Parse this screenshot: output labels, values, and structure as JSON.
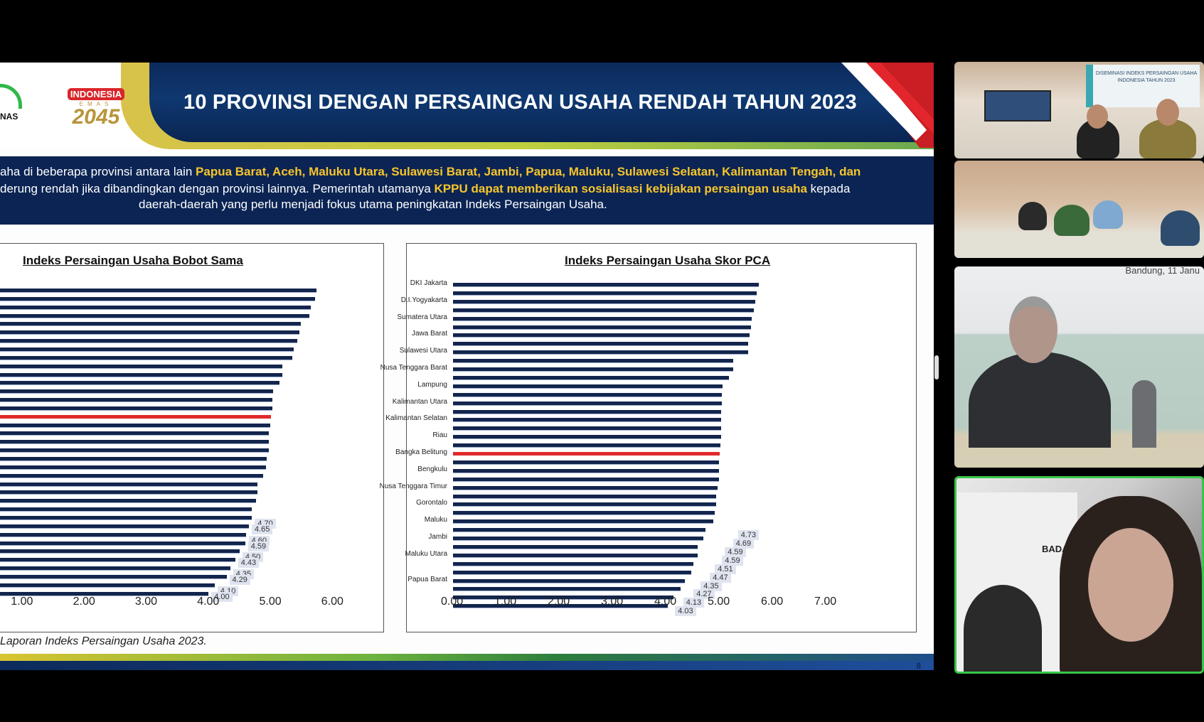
{
  "slide": {
    "title": "10 PROVINSI DENGAN PERSAINGAN USAHA RENDAH TAHUN 2023",
    "logo_left_text": "NAS",
    "logo_emas": {
      "top": "INDONESIA",
      "mid": "EMAS",
      "year": "2045"
    },
    "intro": {
      "line1_plain": "aha di beberapa provinsi antara lain ",
      "line1_highlight": "Papua Barat, Aceh, Maluku Utara, Sulawesi Barat, Jambi, Papua, Maluku, Sulawesi Selatan, Kalimantan Tengah, dan",
      "line2_plain_a": "derung rendah jika dibandingkan dengan provinsi lainnya. Pemerintah utamanya ",
      "line2_highlight": "KPPU dapat memberikan sosialisasi kebijakan persaingan usaha",
      "line2_plain_b": " kepada",
      "line3": "daerah-daerah yang perlu menjadi fokus utama peningkatan Indeks Persaingan Usaha."
    },
    "source": "Laporan Indeks Persaingan Usaha 2023.",
    "page_number": "8",
    "colors": {
      "bar": "#13254d",
      "highlight_bar": "#e02a2a",
      "banner": "#0c2a5c",
      "highlight_text": "#f7c52b"
    }
  },
  "chart_data": [
    {
      "type": "bar",
      "orientation": "horizontal",
      "title": "Indeks Persaingan Usaha Bobot Sama",
      "xlabel": "",
      "ylabel": "",
      "x_ticks": [
        "1.00",
        "2.00",
        "3.00",
        "4.00",
        "5.00",
        "6.00"
      ],
      "xlim": [
        0,
        6
      ],
      "categories_visible": false,
      "values": [
        5.74,
        5.72,
        5.65,
        5.63,
        5.49,
        5.46,
        5.43,
        5.37,
        5.35,
        5.19,
        5.19,
        5.14,
        5.04,
        5.03,
        5.03,
        5.01,
        4.99,
        4.97,
        4.97,
        4.97,
        4.94,
        4.92,
        4.88,
        4.79,
        4.79,
        4.76,
        4.7,
        4.7,
        4.65,
        4.6,
        4.59,
        4.5,
        4.43,
        4.35,
        4.29,
        4.1,
        4.0
      ],
      "highlight_index": 15,
      "data_labels_bottom10": [
        "4.70",
        "4.65",
        "4.60",
        "4.59",
        "4.50",
        "4.43",
        "4.35",
        "4.29",
        "4.10",
        "4.00"
      ]
    },
    {
      "type": "bar",
      "orientation": "horizontal",
      "title": "Indeks Persaingan Usaha Skor PCA",
      "xlabel": "",
      "ylabel": "",
      "x_ticks": [
        "0.00",
        "1.00",
        "2.00",
        "3.00",
        "4.00",
        "5.00",
        "6.00",
        "7.00"
      ],
      "xlim": [
        0,
        7
      ],
      "category_labels_every_other": [
        "DKI Jakarta",
        "D.I.Yogyakarta",
        "Sumatera Utara",
        "Jawa Barat",
        "Sulawesi Utara",
        "Nusa Tenggara Barat",
        "Lampung",
        "Kalimantan Utara",
        "Kalimantan Selatan",
        "Riau",
        "Bangka Belitung",
        "Bengkulu",
        "Nusa Tenggara Timur",
        "Gorontalo",
        "Maluku",
        "Jambi",
        "Maluku Utara",
        "Papua Barat"
      ],
      "values": [
        5.73,
        5.69,
        5.67,
        5.64,
        5.6,
        5.58,
        5.56,
        5.53,
        5.53,
        5.25,
        5.25,
        5.17,
        5.05,
        5.04,
        5.04,
        5.03,
        5.03,
        5.02,
        5.02,
        5.01,
        5.0,
        4.99,
        4.98,
        4.98,
        4.96,
        4.93,
        4.93,
        4.9,
        4.88,
        4.73,
        4.69,
        4.59,
        4.59,
        4.51,
        4.47,
        4.35,
        4.27,
        4.13,
        4.03
      ],
      "highlight_label": "Bangka Belitung",
      "data_labels_bottom10": [
        "4.73",
        "4.69",
        "4.59",
        "4.59",
        "4.51",
        "4.47",
        "4.35",
        "4.27",
        "4.13",
        "4.03"
      ]
    }
  ],
  "participants": {
    "tile1": {
      "banner_text": "DISEMINASI INDEKS PERSAINGAN USAHA INDONESIA TAHUN 2023"
    },
    "tile3": {
      "backdrop_text": "Bandung, 11 Janu"
    },
    "tile4": {
      "building_text": "BADAN",
      "active_speaker": true
    }
  }
}
